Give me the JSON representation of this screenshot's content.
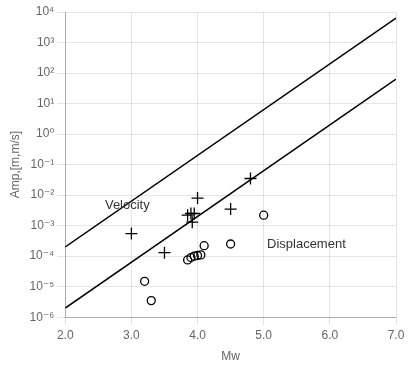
{
  "chart_data": {
    "type": "scatter",
    "xlabel": "Mw",
    "ylabel": "Amp,[m,m/s]",
    "log": "y",
    "grid": true,
    "xlim": [
      2.0,
      7.0
    ],
    "ylim": [
      1e-06,
      10000.0
    ],
    "xticks": [
      {
        "value": 2.0,
        "label": "2.0"
      },
      {
        "value": 3.0,
        "label": "3.0"
      },
      {
        "value": 4.0,
        "label": "4.0"
      },
      {
        "value": 5.0,
        "label": "5.0"
      },
      {
        "value": 6.0,
        "label": "6.0"
      },
      {
        "value": 7.0,
        "label": "7.0"
      }
    ],
    "yticks": [
      {
        "value": 1e-06,
        "label": "10⁻⁶"
      },
      {
        "value": 1e-05,
        "label": "10⁻⁵"
      },
      {
        "value": 0.0001,
        "label": "10⁻⁴"
      },
      {
        "value": 0.001,
        "label": "10⁻³"
      },
      {
        "value": 0.01,
        "label": "10⁻²"
      },
      {
        "value": 0.1,
        "label": "10⁻¹"
      },
      {
        "value": 1,
        "label": "10⁰"
      },
      {
        "value": 10,
        "label": "10¹"
      },
      {
        "value": 100,
        "label": "10²"
      },
      {
        "value": 1000,
        "label": "10³"
      },
      {
        "value": 10000,
        "label": "10⁴"
      }
    ],
    "series": [
      {
        "type": "line",
        "color": "#000000",
        "line_style": "solid",
        "x": [
          2.0,
          7.0
        ],
        "values": [
          1.9952623149688787e-06,
          63.09573444801933
        ]
      },
      {
        "type": "line",
        "color": "#000000",
        "line_style": "solid",
        "x": [
          2.0,
          7.0
        ],
        "values": [
          0.00019952623149688788,
          6309.573444801933
        ]
      },
      {
        "type": "scatter",
        "color": "#000000",
        "marker": "circle",
        "x": [
          3.2,
          3.3,
          3.85,
          3.9,
          3.95,
          4.0,
          4.05,
          4.1,
          4.5,
          5.0
        ],
        "values": [
          1.5e-05,
          3.5e-06,
          7.5e-05,
          9e-05,
          0.0001,
          0.000105,
          0.00011,
          0.00022,
          0.00025,
          0.0022
        ]
      },
      {
        "type": "scatter",
        "color": "#000000",
        "marker": "cross",
        "x": [
          3.0,
          3.5,
          3.85,
          3.9,
          3.92,
          3.95,
          4.0,
          4.5,
          4.8
        ],
        "values": [
          0.00055,
          0.00013,
          0.0022,
          0.0025,
          0.0013,
          0.0025,
          0.008,
          0.0035,
          0.035
        ]
      }
    ],
    "annotations": [
      {
        "text": "Velocity",
        "x": 2.6,
        "y": 0.0035
      },
      {
        "text": "Displacement",
        "x": 5.05,
        "y": 0.00018
      }
    ]
  }
}
